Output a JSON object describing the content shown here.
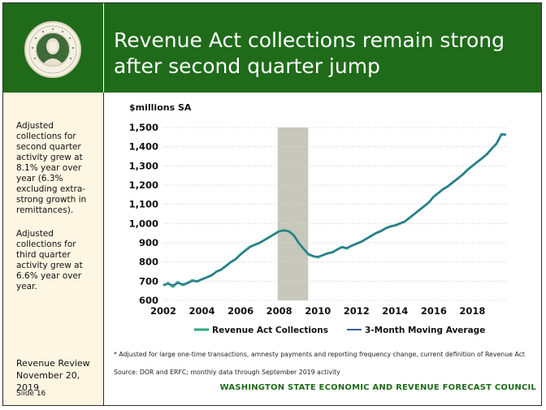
{
  "header": {
    "title_line1": "Revenue Act collections remain strong",
    "title_line2": "after second quarter jump",
    "seal_text": "SEAL OF THE STATE OF WASHINGTON",
    "seal_year": "1889",
    "colors": {
      "header_bg": "#1f6b1a",
      "sidebar_bg": "#fdf6e2"
    }
  },
  "sidebar": {
    "paragraph1": "Adjusted collections for second quarter activity grew at 8.1% year over year (6.3% excluding extra-strong growth in remittances).",
    "paragraph2": "Adjusted collections for third quarter activity grew at 6.6% year over year.",
    "review_line1": "Revenue Review",
    "review_line2": "November 20, 2019",
    "slide": "Slide 16"
  },
  "footer": {
    "footnote": "* Adjusted for large one-time transactions, amnesty payments and reporting frequency change, current definition of Revenue Act",
    "source": "Source: DOR and ERFC; monthly data through September 2019 activity",
    "council": "WASHINGTON STATE ECONOMIC AND REVENUE FORECAST COUNCIL"
  },
  "chart_data": {
    "type": "line",
    "ylabel": "$millions SA",
    "xlim": [
      2002,
      2019.75
    ],
    "ylim": [
      600,
      1500
    ],
    "yticks": [
      600,
      700,
      800,
      900,
      1000,
      1100,
      1200,
      1300,
      1400,
      1500
    ],
    "ytick_labels": [
      "600",
      "700",
      "800",
      "900",
      "1,000",
      "1,100",
      "1,200",
      "1,300",
      "1,400",
      "1,500"
    ],
    "xticks": [
      2002,
      2004,
      2006,
      2008,
      2010,
      2012,
      2014,
      2016,
      2018
    ],
    "xtick_labels": [
      "2002",
      "2004",
      "2006",
      "2008",
      "2010",
      "2012",
      "2014",
      "2016",
      "2018"
    ],
    "grid": true,
    "recession_band": [
      2007.92,
      2009.5
    ],
    "legend_position": "bottom",
    "colors": {
      "collections": "#2ba877",
      "moving_average": "#3a5fa8",
      "recession": "#c8c7bb"
    },
    "series": [
      {
        "name": "Revenue Act Collections",
        "x": [
          2002.0,
          2002.25,
          2002.5,
          2002.75,
          2003.0,
          2003.25,
          2003.5,
          2003.75,
          2004.0,
          2004.25,
          2004.5,
          2004.75,
          2005.0,
          2005.25,
          2005.5,
          2005.75,
          2006.0,
          2006.25,
          2006.5,
          2006.75,
          2007.0,
          2007.25,
          2007.5,
          2007.75,
          2008.0,
          2008.25,
          2008.5,
          2008.75,
          2009.0,
          2009.25,
          2009.5,
          2009.75,
          2010.0,
          2010.25,
          2010.5,
          2010.75,
          2011.0,
          2011.25,
          2011.5,
          2011.75,
          2012.0,
          2012.25,
          2012.5,
          2012.75,
          2013.0,
          2013.25,
          2013.5,
          2013.75,
          2014.0,
          2014.25,
          2014.5,
          2014.75,
          2015.0,
          2015.25,
          2015.5,
          2015.75,
          2016.0,
          2016.25,
          2016.5,
          2016.75,
          2017.0,
          2017.25,
          2017.5,
          2017.75,
          2018.0,
          2018.25,
          2018.5,
          2018.75,
          2019.0,
          2019.25,
          2019.5,
          2019.75
        ],
        "values": [
          678,
          690,
          672,
          695,
          680,
          690,
          705,
          698,
          710,
          720,
          730,
          750,
          760,
          780,
          800,
          815,
          840,
          860,
          880,
          890,
          900,
          915,
          930,
          945,
          960,
          965,
          960,
          940,
          900,
          870,
          840,
          830,
          825,
          835,
          845,
          850,
          865,
          878,
          870,
          885,
          895,
          905,
          920,
          935,
          950,
          960,
          975,
          985,
          990,
          1000,
          1010,
          1030,
          1050,
          1070,
          1090,
          1110,
          1140,
          1160,
          1180,
          1195,
          1215,
          1235,
          1255,
          1280,
          1300,
          1320,
          1340,
          1360,
          1390,
          1415,
          1465,
          1462
        ]
      },
      {
        "name": "3-Month Moving Average",
        "x": [
          2002.0,
          2002.25,
          2002.5,
          2002.75,
          2003.0,
          2003.25,
          2003.5,
          2003.75,
          2004.0,
          2004.25,
          2004.5,
          2004.75,
          2005.0,
          2005.25,
          2005.5,
          2005.75,
          2006.0,
          2006.25,
          2006.5,
          2006.75,
          2007.0,
          2007.25,
          2007.5,
          2007.75,
          2008.0,
          2008.25,
          2008.5,
          2008.75,
          2009.0,
          2009.25,
          2009.5,
          2009.75,
          2010.0,
          2010.25,
          2010.5,
          2010.75,
          2011.0,
          2011.25,
          2011.5,
          2011.75,
          2012.0,
          2012.25,
          2012.5,
          2012.75,
          2013.0,
          2013.25,
          2013.5,
          2013.75,
          2014.0,
          2014.25,
          2014.5,
          2014.75,
          2015.0,
          2015.25,
          2015.5,
          2015.75,
          2016.0,
          2016.25,
          2016.5,
          2016.75,
          2017.0,
          2017.25,
          2017.5,
          2017.75,
          2018.0,
          2018.25,
          2018.5,
          2018.75,
          2019.0,
          2019.25,
          2019.5,
          2019.75
        ],
        "values": [
          680,
          684,
          682,
          688,
          686,
          690,
          698,
          702,
          710,
          720,
          732,
          748,
          762,
          780,
          798,
          815,
          838,
          858,
          876,
          890,
          902,
          915,
          930,
          945,
          958,
          963,
          958,
          938,
          902,
          870,
          845,
          832,
          828,
          834,
          843,
          851,
          864,
          874,
          875,
          884,
          896,
          906,
          920,
          934,
          949,
          960,
          973,
          984,
          991,
          1001,
          1012,
          1030,
          1050,
          1070,
          1090,
          1112,
          1138,
          1160,
          1178,
          1196,
          1215,
          1235,
          1256,
          1278,
          1300,
          1320,
          1340,
          1362,
          1388,
          1418,
          1460,
          1463
        ]
      }
    ]
  }
}
